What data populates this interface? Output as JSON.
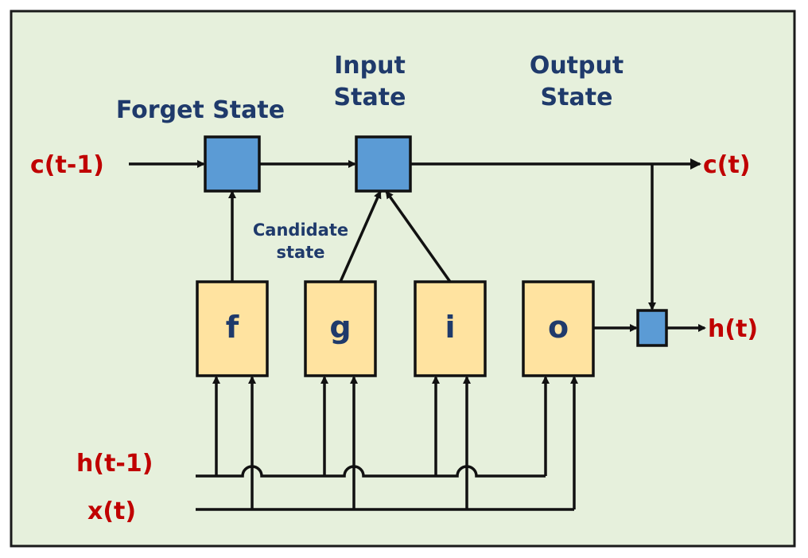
{
  "titles": {
    "forget": "Forget State",
    "input_line1": "Input",
    "input_line2": "State",
    "output_line1": "Output",
    "output_line2": "State",
    "candidate_line1": "Candidate",
    "candidate_line2": "state"
  },
  "signals": {
    "c_prev": "c(t-1)",
    "c_next": "c(t)",
    "h_next": "h(t)",
    "h_prev": "h(t-1)",
    "x_t": "x(t)"
  },
  "gates": {
    "f": "f",
    "g": "g",
    "i": "i",
    "o": "o"
  },
  "colors": {
    "background": "#e6f0dc",
    "frame": "#1a1a1a",
    "gate_fill": "#ffe3a0",
    "op_fill": "#5b9bd5",
    "title_text": "#1f3a6b",
    "signal_text": "#c00000"
  }
}
